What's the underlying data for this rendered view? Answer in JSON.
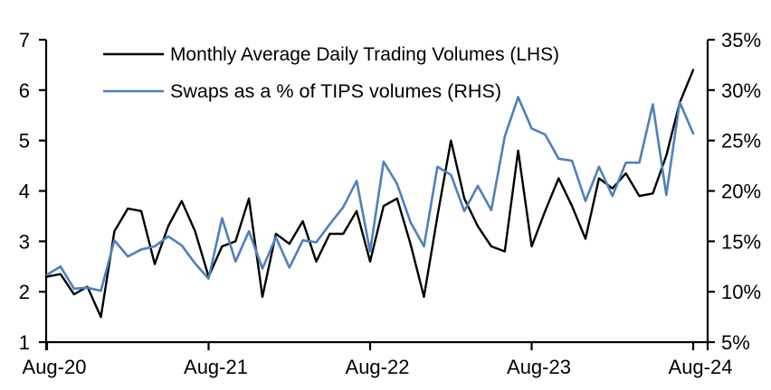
{
  "chart_data": {
    "type": "line",
    "title": "",
    "x_axis": {
      "tick_labels": [
        "Aug-20",
        "Aug-21",
        "Aug-22",
        "Aug-23",
        "Aug-24"
      ],
      "tick_month_indices": [
        0,
        12,
        24,
        36,
        48
      ],
      "months_total": 49
    },
    "left_axis": {
      "min": 1,
      "max": 7,
      "ticks": [
        7,
        6,
        5,
        4,
        3,
        2,
        1
      ],
      "suffix": ""
    },
    "right_axis": {
      "min": 5,
      "max": 35,
      "ticks": [
        35,
        30,
        25,
        20,
        15,
        10,
        5
      ],
      "suffix": "%"
    },
    "grid": false,
    "legend_position": "top-left-inside",
    "axis_color": "#000000",
    "series": [
      {
        "name": "Monthly Average Daily Trading Volumes (LHS)",
        "axis": "left",
        "color": "#000000",
        "values": [
          2.3,
          2.35,
          1.95,
          2.1,
          1.5,
          3.2,
          3.65,
          3.6,
          2.55,
          3.3,
          3.8,
          3.2,
          2.3,
          2.9,
          3.0,
          3.85,
          1.9,
          3.15,
          2.95,
          3.4,
          2.6,
          3.15,
          3.15,
          3.6,
          2.6,
          3.7,
          3.85,
          2.95,
          1.9,
          3.5,
          5.0,
          3.85,
          3.3,
          2.9,
          2.8,
          4.8,
          2.9,
          3.6,
          4.25,
          3.7,
          3.05,
          4.25,
          4.05,
          4.35,
          3.9,
          3.95,
          4.7,
          5.75,
          6.4
        ]
      },
      {
        "name": "Swaps as a % of TIPS volumes (RHS)",
        "axis": "right",
        "color": "#4e80bd",
        "values": [
          11.7,
          12.5,
          10.3,
          10.4,
          10.1,
          15.1,
          13.5,
          14.2,
          14.5,
          15.5,
          14.6,
          12.8,
          11.3,
          17.3,
          13.0,
          16.0,
          12.3,
          15.4,
          12.4,
          15.1,
          14.9,
          16.7,
          18.4,
          21.0,
          14.0,
          22.9,
          20.7,
          16.9,
          14.5,
          22.4,
          21.6,
          18.0,
          20.5,
          18.1,
          25.4,
          29.3,
          26.2,
          25.6,
          23.2,
          23.0,
          19.0,
          22.4,
          19.5,
          22.8,
          22.8,
          28.6,
          19.6,
          28.8,
          25.7
        ]
      }
    ]
  }
}
